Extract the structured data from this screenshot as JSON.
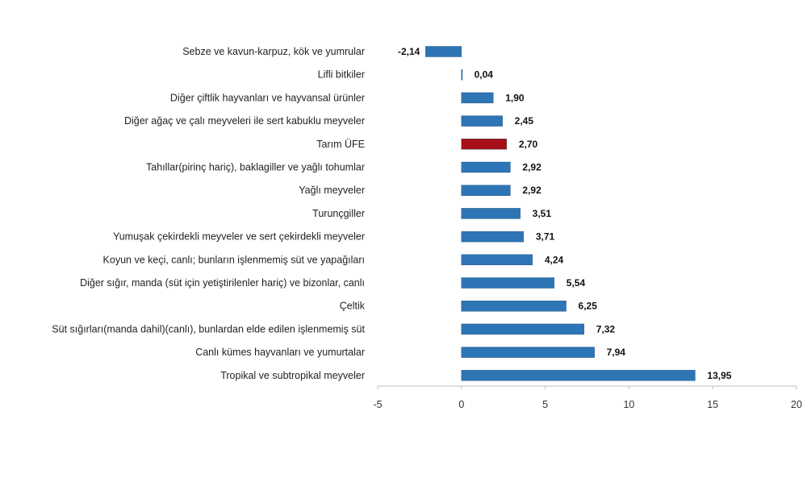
{
  "chart_data": {
    "type": "bar",
    "orientation": "horizontal",
    "categories": [
      "Sebze ve kavun-karpuz, kök ve yumrular",
      "Lifli bitkiler",
      "Diğer çiftlik hayvanları ve hayvansal ürünler",
      "Diğer ağaç ve çalı meyveleri ile sert kabuklu meyveler",
      "Tarım ÜFE",
      "Tahıllar(pirinç hariç), baklagiller ve yağlı tohumlar",
      "Yağlı meyveler",
      "Turunçgiller",
      "Yumuşak çekirdekli meyveler ve sert çekirdekli meyveler",
      "Koyun ve keçi, canlı; bunların işlenmemiş süt ve yapağıları",
      "Diğer sığır, manda (süt için yetiştirilenler hariç) ve bizonlar, canlı",
      "Çeltik",
      "Süt sığırları(manda dahil)(canlı), bunlardan elde edilen işlenmemiş süt",
      "Canlı kümes hayvanları ve yumurtalar",
      "Tropikal ve subtropikal meyveler"
    ],
    "values": [
      -2.14,
      0.04,
      1.9,
      2.45,
      2.7,
      2.92,
      2.92,
      3.51,
      3.71,
      4.24,
      5.54,
      6.25,
      7.32,
      7.94,
      13.95
    ],
    "value_labels": [
      "-2,14",
      "0,04",
      "1,90",
      "2,45",
      "2,70",
      "2,92",
      "2,92",
      "3,51",
      "3,71",
      "4,24",
      "5,54",
      "6,25",
      "7,32",
      "7,94",
      "13,95"
    ],
    "highlight_index": 4,
    "xlim": [
      -5,
      20
    ],
    "xticks": [
      -5,
      0,
      5,
      10,
      15,
      20
    ],
    "xtick_labels": [
      "-5",
      "0",
      "5",
      "10",
      "15",
      "20"
    ],
    "title": "",
    "xlabel": "",
    "ylabel": "",
    "grid": false,
    "legend": "none",
    "colors": {
      "bar": "#2e75b6",
      "highlight": "#a50f15",
      "axis": "#bfbfbf",
      "bar_edge": "#1f4e79"
    }
  }
}
